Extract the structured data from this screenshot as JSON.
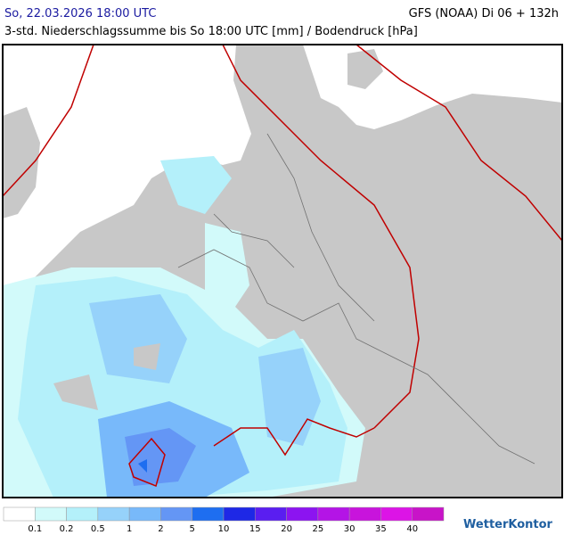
{
  "header": {
    "valid_time": "So, 22.03.2026 18:00 UTC",
    "model_run": "GFS (NOAA) Di 06 + 132h",
    "subtitle": "3-std. Niederschlagssumme bis So 18:00 UTC [mm] / Bodendruck [hPa]"
  },
  "legend": {
    "labels": [
      "0.1",
      "0.2",
      "0.5",
      "1",
      "2",
      "5",
      "10",
      "15",
      "20",
      "25",
      "30",
      "35",
      "40"
    ],
    "colors": [
      "#ffffff",
      "#d2fafa",
      "#b4f0fa",
      "#96d2fa",
      "#78b9fa",
      "#6496f5",
      "#1e6ef0",
      "#1e28e6",
      "#5a1ef0",
      "#8c14f0",
      "#b414e6",
      "#c814dc",
      "#dc14e6",
      "#c814c8"
    ]
  },
  "brand": "WetterKontor"
}
